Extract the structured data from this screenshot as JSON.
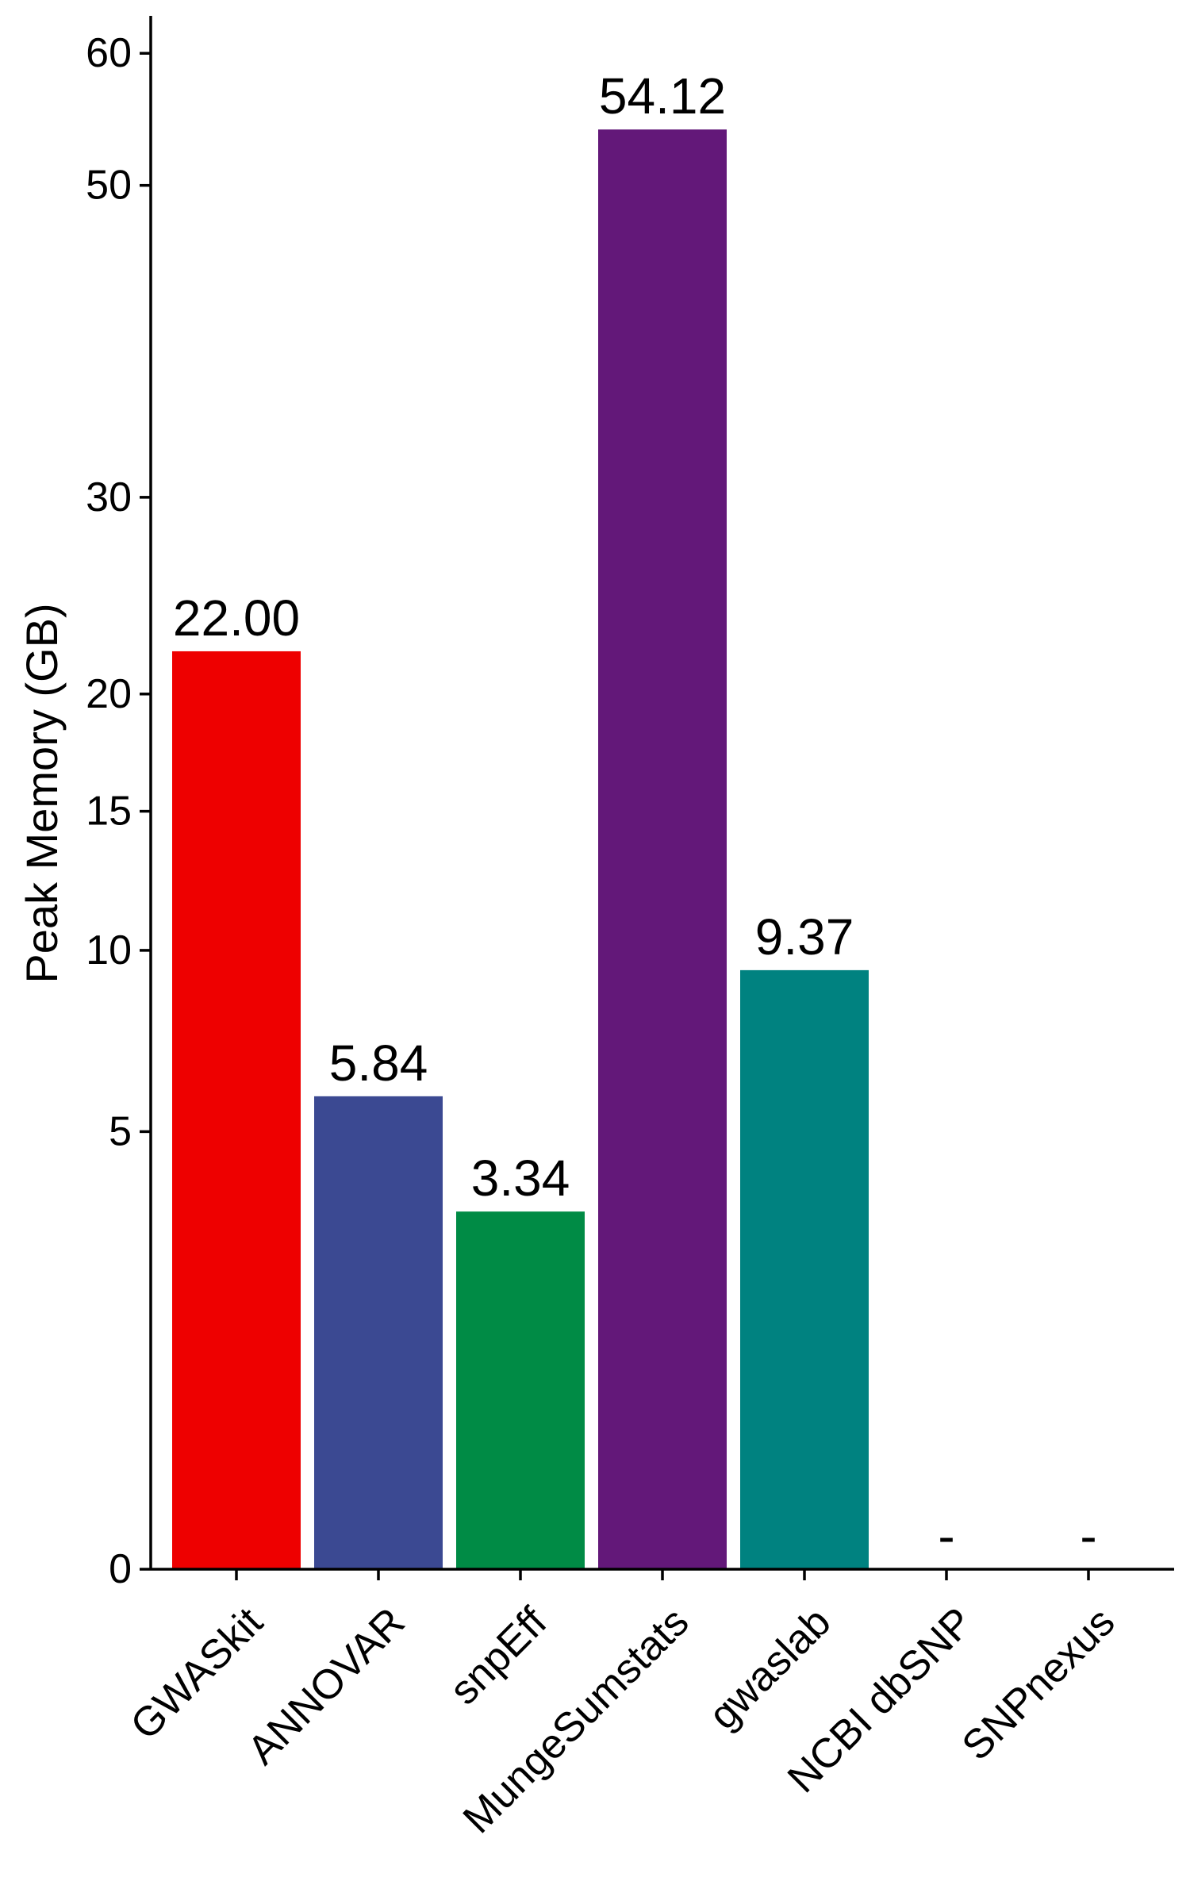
{
  "chart_data": {
    "type": "bar",
    "title": "",
    "xlabel": "",
    "ylabel": "Peak Memory (GB)",
    "categories": [
      "GWASkit",
      "ANNOVAR",
      "snpEff",
      "MungeSumstats",
      "gwaslab",
      "NCBI dbSNP",
      "SNPnexus"
    ],
    "values": [
      22.0,
      5.84,
      3.34,
      54.12,
      9.37,
      null,
      null
    ],
    "value_labels": [
      "22.00",
      "5.84",
      "3.34",
      "54.12",
      "9.37",
      "-",
      "-"
    ],
    "colors": [
      "#EE0000",
      "#3B4992",
      "#008B45",
      "#631879",
      "#008280",
      "#BB0021",
      "#5F559B"
    ],
    "y_ticks": [
      0,
      5,
      10,
      15,
      20,
      30,
      50,
      60
    ],
    "y_tick_labels": [
      "0",
      "5",
      "10",
      "15",
      "20",
      "30",
      "50",
      "60"
    ],
    "y_scale": "sqrt",
    "ylim": [
      0,
      63
    ],
    "grid": false,
    "legend": "none"
  }
}
